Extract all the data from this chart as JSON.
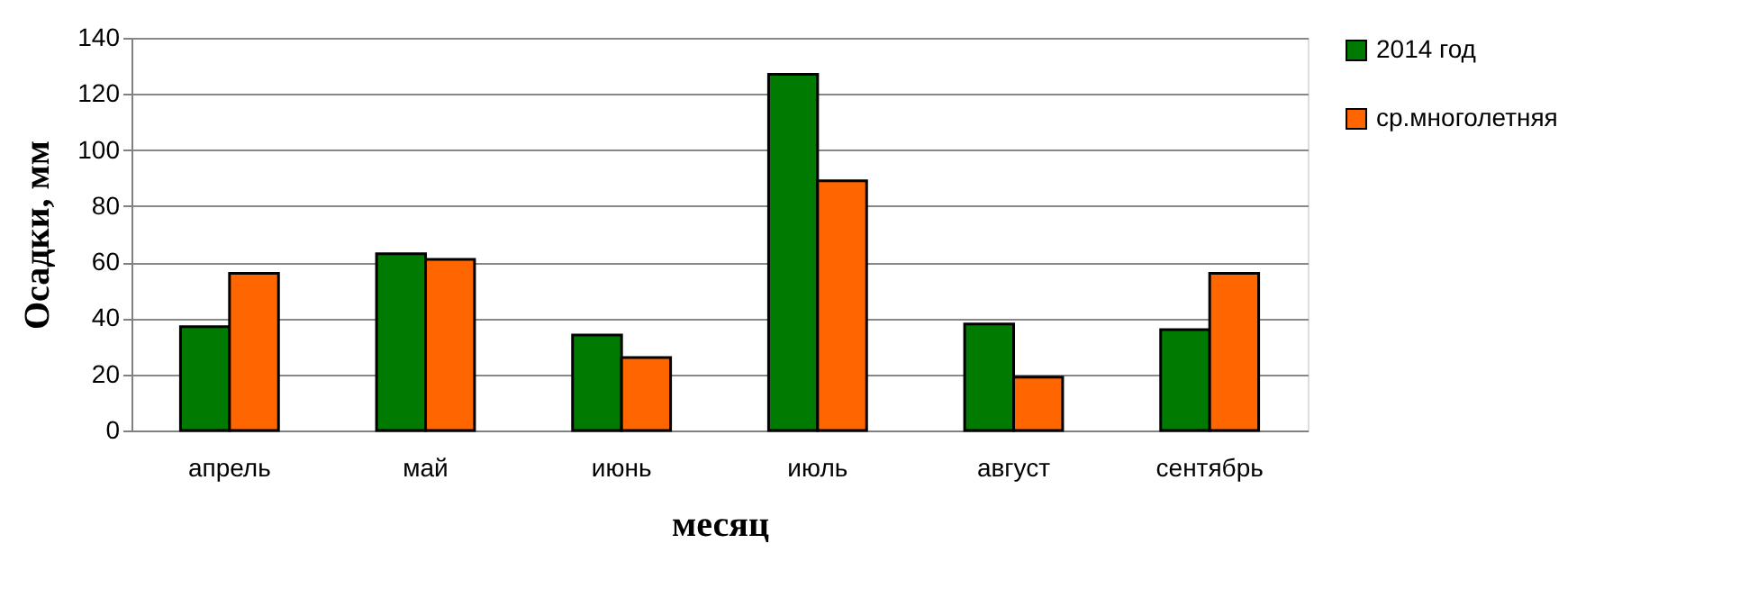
{
  "chart_data": {
    "type": "bar",
    "xlabel": "месяц",
    "ylabel": "Осадки, мм",
    "categories": [
      "апрель",
      "май",
      "июнь",
      "июль",
      "август",
      "сентябрь"
    ],
    "series": [
      {
        "name": "2014 год",
        "color": "#007a00",
        "values": [
          37,
          63,
          34,
          127,
          38,
          36
        ]
      },
      {
        "name": "ср.многолетняя",
        "color": "#ff6600",
        "values": [
          56,
          61,
          26,
          89,
          19,
          56
        ]
      }
    ],
    "ylim": [
      0,
      140
    ],
    "yticks": [
      0,
      20,
      40,
      60,
      80,
      100,
      120,
      140
    ],
    "grid": "y",
    "legend": "right"
  }
}
